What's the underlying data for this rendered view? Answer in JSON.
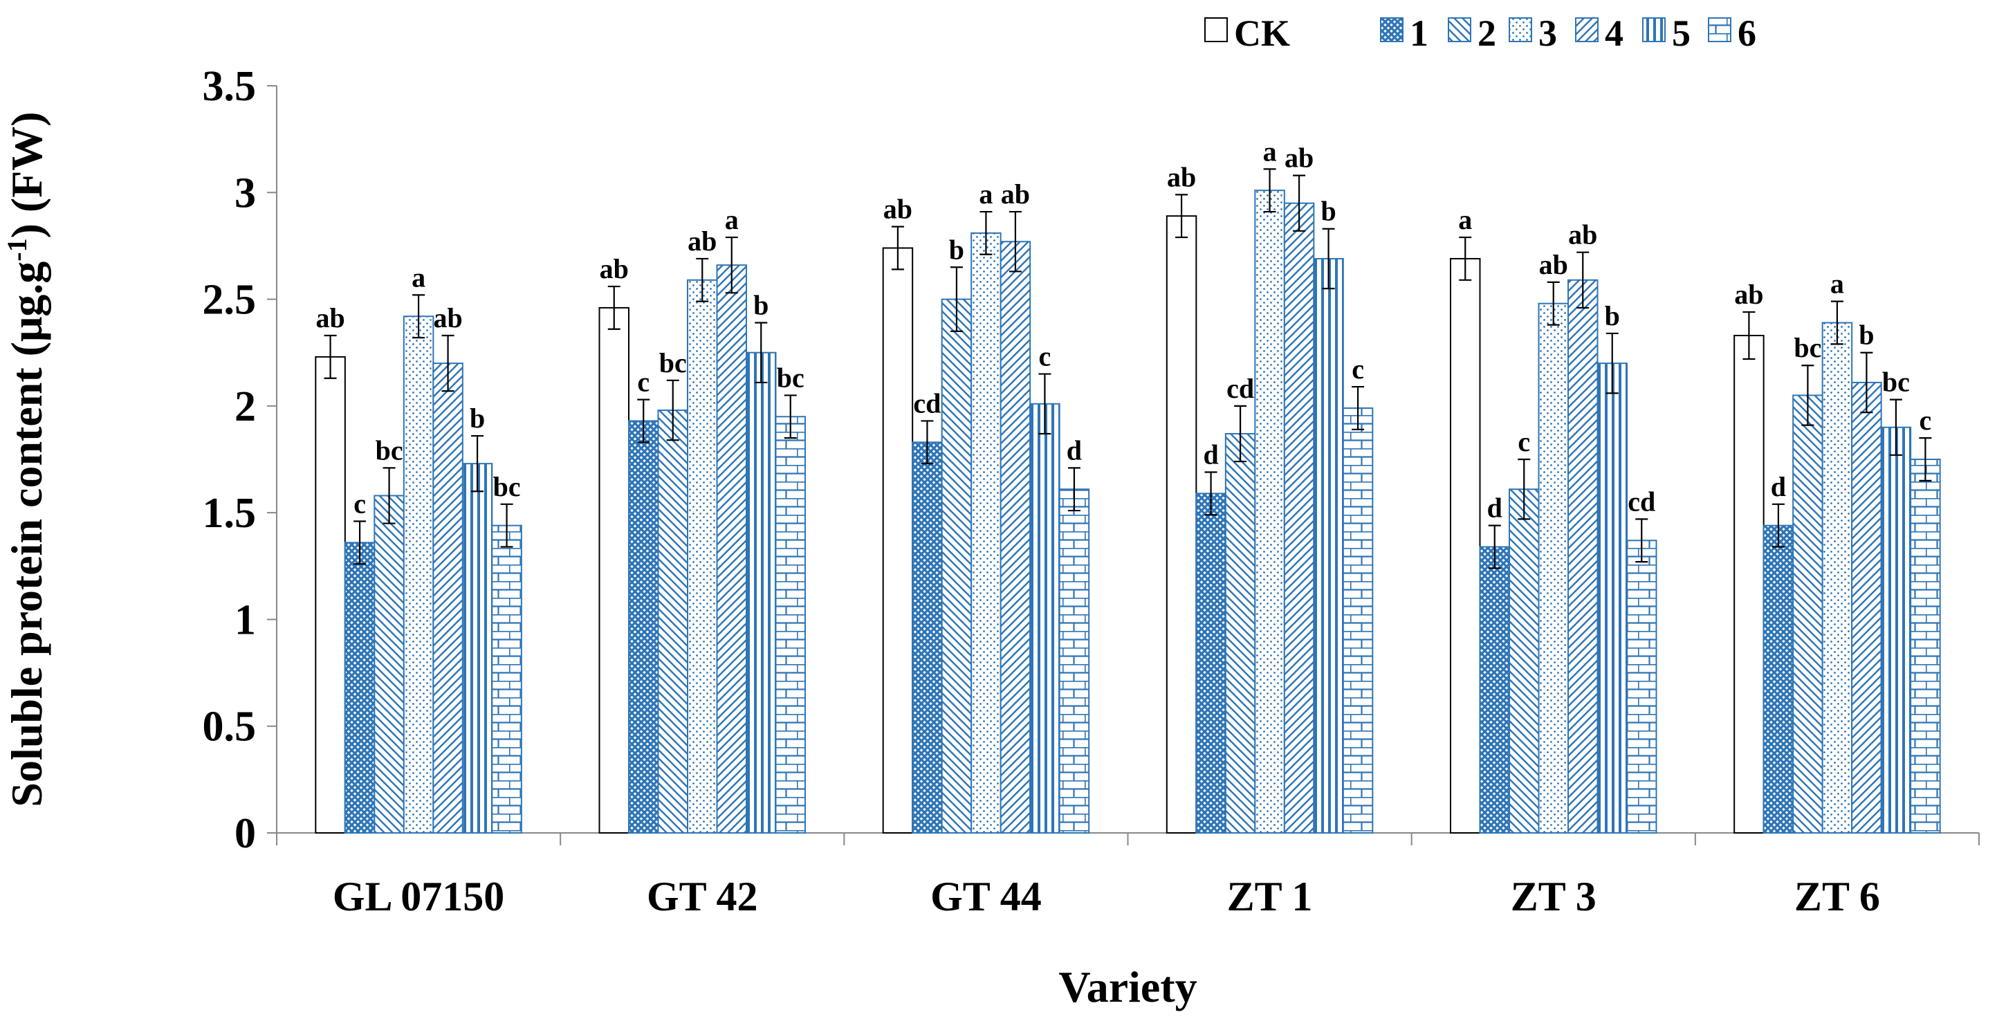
{
  "chart_data": {
    "type": "bar",
    "ylabel_parts": [
      "Soluble protein content (μg.g",
      "-1",
      ") (FW)"
    ],
    "ylabel": "Soluble protein content (μg.g-1) (FW)",
    "xlabel": "Variety",
    "ylim": [
      0,
      3.5
    ],
    "yticks": [
      "0",
      "0.5",
      "1",
      "1.5",
      "2",
      "2.5",
      "3",
      "3.5"
    ],
    "categories": [
      "GL 07150",
      "GT 42",
      "GT 44",
      "ZT 1",
      "ZT 3",
      "ZT 6"
    ],
    "legend_position": "top-right",
    "series": [
      {
        "name": "CK",
        "pattern": "none",
        "values": [
          2.23,
          2.46,
          2.74,
          2.89,
          2.69,
          2.33
        ],
        "errors": [
          0.1,
          0.1,
          0.1,
          0.1,
          0.1,
          0.11
        ],
        "labels": [
          "ab",
          "ab",
          "ab",
          "ab",
          "a",
          "ab"
        ]
      },
      {
        "name": "1",
        "pattern": "crosshatch",
        "values": [
          1.36,
          1.93,
          1.83,
          1.59,
          1.34,
          1.44
        ],
        "errors": [
          0.1,
          0.1,
          0.1,
          0.1,
          0.1,
          0.1
        ],
        "labels": [
          "c",
          "c",
          "cd",
          "d",
          "d",
          "d"
        ]
      },
      {
        "name": "2",
        "pattern": "backdiag",
        "values": [
          1.58,
          1.98,
          2.5,
          1.87,
          1.61,
          2.05
        ],
        "errors": [
          0.13,
          0.14,
          0.15,
          0.13,
          0.14,
          0.14
        ],
        "labels": [
          "bc",
          "bc",
          "b",
          "cd",
          "c",
          "bc"
        ]
      },
      {
        "name": "3",
        "pattern": "dots",
        "values": [
          2.42,
          2.59,
          2.81,
          3.01,
          2.48,
          2.39
        ],
        "errors": [
          0.1,
          0.1,
          0.1,
          0.1,
          0.1,
          0.1
        ],
        "labels": [
          "a",
          "ab",
          "a",
          "a",
          "ab",
          "a"
        ]
      },
      {
        "name": "4",
        "pattern": "fwddiag",
        "values": [
          2.2,
          2.66,
          2.77,
          2.95,
          2.59,
          2.11
        ],
        "errors": [
          0.13,
          0.13,
          0.14,
          0.13,
          0.13,
          0.14
        ],
        "labels": [
          "ab",
          "a",
          "ab",
          "ab",
          "ab",
          "b"
        ]
      },
      {
        "name": "5",
        "pattern": "vstripes",
        "values": [
          1.73,
          2.25,
          2.01,
          2.69,
          2.2,
          1.9
        ],
        "errors": [
          0.13,
          0.14,
          0.14,
          0.14,
          0.14,
          0.13
        ],
        "labels": [
          "b",
          "b",
          "c",
          "b",
          "b",
          "bc"
        ]
      },
      {
        "name": "6",
        "pattern": "brick",
        "values": [
          1.44,
          1.95,
          1.61,
          1.99,
          1.37,
          1.75
        ],
        "errors": [
          0.1,
          0.1,
          0.1,
          0.1,
          0.1,
          0.1
        ],
        "labels": [
          "bc",
          "bc",
          "d",
          "c",
          "cd",
          "c"
        ]
      }
    ],
    "colors": {
      "outline": "#2e75b6",
      "fill": "#ffffff",
      "ck_outline": "#000000",
      "axis": "#888888"
    }
  }
}
